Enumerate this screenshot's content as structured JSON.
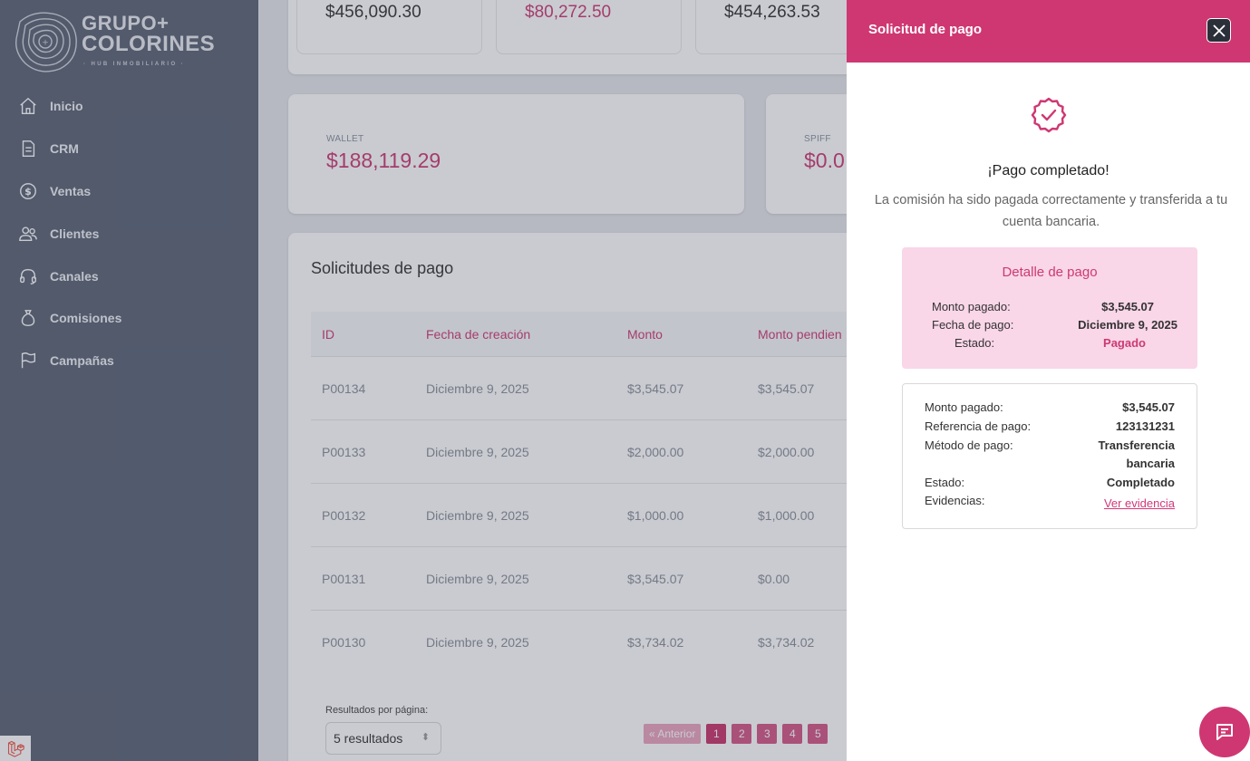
{
  "sidebar": {
    "logo": {
      "line1": "GRUPO+",
      "line2": "COLORINES",
      "tagline": "· HUB INMOBILIARIO ·"
    },
    "items": [
      {
        "label": "Inicio",
        "icon": "home-icon"
      },
      {
        "label": "CRM",
        "icon": "document-icon"
      },
      {
        "label": "Ventas",
        "icon": "dollar-icon"
      },
      {
        "label": "Clientes",
        "icon": "users-icon"
      },
      {
        "label": "Canales",
        "icon": "headset-icon"
      },
      {
        "label": "Comisiones",
        "icon": "money-bag-icon"
      },
      {
        "label": "Campañas",
        "icon": "flag-icon"
      }
    ]
  },
  "stats": {
    "values": [
      "$456,090.30",
      "$80,272.50",
      "$454,263.53"
    ]
  },
  "wallet": {
    "label": "WALLET",
    "value": "$188,119.29"
  },
  "spiff": {
    "label": "SPIFF",
    "value": "$0.0"
  },
  "table": {
    "title": "Solicitudes de pago",
    "headers": [
      "ID",
      "Fecha de creación",
      "Monto",
      "Monto pendien"
    ],
    "rows": [
      [
        "P00134",
        "Diciembre 9, 2025",
        "$3,545.07",
        "$3,545.07"
      ],
      [
        "P00133",
        "Diciembre 9, 2025",
        "$2,000.00",
        "$2,000.00"
      ],
      [
        "P00132",
        "Diciembre 9, 2025",
        "$1,000.00",
        "$1,000.00"
      ],
      [
        "P00131",
        "Diciembre 9, 2025",
        "$3,545.07",
        "$0.00"
      ],
      [
        "P00130",
        "Diciembre 9, 2025",
        "$3,734.02",
        "$3,734.02"
      ]
    ],
    "per_page_label": "Resultados por página:",
    "per_page_value": "5 resultados",
    "pagination": {
      "prev": "« Anterior",
      "pages": [
        "1",
        "2",
        "3",
        "4",
        "5"
      ],
      "active": "1"
    }
  },
  "panel": {
    "title": "Solicitud de pago",
    "success_title": "¡Pago completado!",
    "success_text": "La comisión ha sido pagada correctamente y transferida a tu cuenta bancaria.",
    "detail": {
      "title": "Detalle de pago",
      "rows": [
        {
          "label": "Monto pagado:",
          "value": "$3,545.07"
        },
        {
          "label": "Fecha de pago:",
          "value": "Diciembre 9, 2025"
        },
        {
          "label": "Estado:",
          "value": "Pagado"
        }
      ]
    },
    "info": {
      "rows": [
        {
          "label": "Monto pagado:",
          "value": "$3,545.07"
        },
        {
          "label": "Referencia de pago:",
          "value": "123131231"
        },
        {
          "label": "Método de pago:",
          "value_line1": "Transferencia",
          "value_line2": "bancaria"
        },
        {
          "label": "Estado:",
          "value": "Completado"
        },
        {
          "label": "Evidencias:",
          "value": "Ver evidencia"
        }
      ]
    }
  },
  "colors": {
    "accent": "#cf3772",
    "sidebar": "#5b6374",
    "detail_bg": "#f9d6e8"
  }
}
